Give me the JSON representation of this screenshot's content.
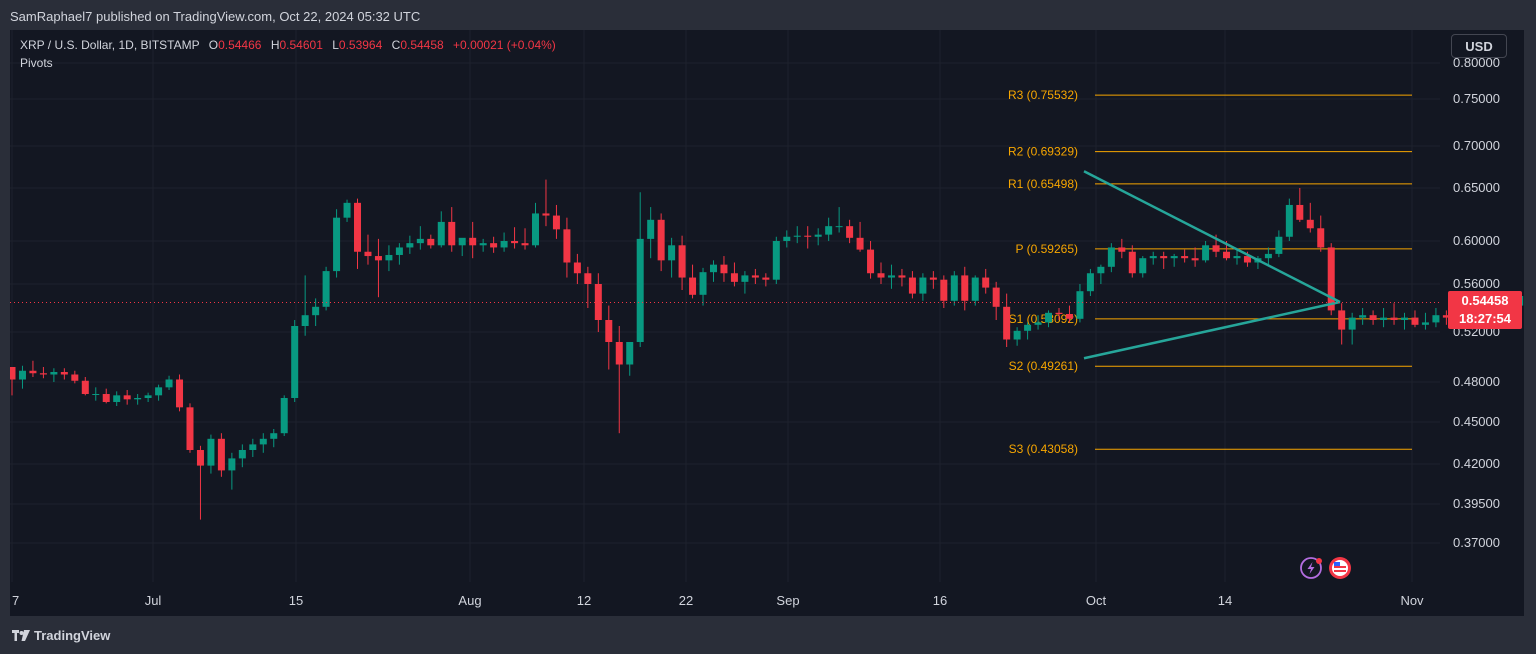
{
  "header": {
    "publisher": "SamRaphael7 published on TradingView.com, Oct 22, 2024 05:32 UTC"
  },
  "legend": {
    "symbol": "XRP / U.S. Dollar, 1D, BITSTAMP",
    "o_label": "O",
    "o": "0.54466",
    "h_label": "H",
    "h": "0.54601",
    "l_label": "L",
    "l": "0.53964",
    "c_label": "C",
    "c": "0.54458",
    "change": "+0.00021 (+0.04%)",
    "indicator": "Pivots"
  },
  "currency_button": "USD",
  "last_price": {
    "price": "0.54458",
    "countdown": "18:27:54"
  },
  "footer": {
    "brand": "TradingView"
  },
  "colors": {
    "up": "#089981",
    "down": "#f23645",
    "pivot": "#f7a600",
    "triangle": "#26a69a",
    "background": "#131722"
  },
  "chart_data": {
    "type": "candlestick",
    "title": "XRP / U.S. Dollar, 1D, BITSTAMP",
    "y_ticks": [
      "0.80000",
      "0.75000",
      "0.70000",
      "0.65000",
      "0.60000",
      "0.56000",
      "0.52000",
      "0.48000",
      "0.45000",
      "0.42000",
      "0.39500",
      "0.37000"
    ],
    "x_ticks": [
      "7",
      "Jul",
      "15",
      "Aug",
      "12",
      "22",
      "Sep",
      "16",
      "Oct",
      "14",
      "Nov"
    ],
    "pivots": [
      {
        "name": "R3",
        "label": "R3 (0.75532)",
        "value": 0.75532
      },
      {
        "name": "R2",
        "label": "R2 (0.69329)",
        "value": 0.69329
      },
      {
        "name": "R1",
        "label": "R1 (0.65498)",
        "value": 0.65498
      },
      {
        "name": "P",
        "label": "P (0.59265)",
        "value": 0.59265
      },
      {
        "name": "S1",
        "label": "S1 (0.53092)",
        "value": 0.53092
      },
      {
        "name": "S2",
        "label": "S2 (0.49261)",
        "value": 0.49261
      },
      {
        "name": "S3",
        "label": "S3 (0.43058)",
        "value": 0.43058
      }
    ],
    "triangle": {
      "upper": [
        [
          "Sep 28",
          0.67
        ],
        [
          "Oct 25",
          0.545
        ]
      ],
      "lower": [
        [
          "Sep 28",
          0.499
        ],
        [
          "Oct 25",
          0.545
        ]
      ]
    },
    "last_close": 0.54458,
    "candles_ohlc": [
      [
        0.492,
        0.492,
        0.47,
        0.482
      ],
      [
        0.482,
        0.493,
        0.475,
        0.489
      ],
      [
        0.489,
        0.497,
        0.484,
        0.487
      ],
      [
        0.487,
        0.492,
        0.483,
        0.486
      ],
      [
        0.486,
        0.491,
        0.48,
        0.488
      ],
      [
        0.488,
        0.491,
        0.482,
        0.486
      ],
      [
        0.486,
        0.489,
        0.479,
        0.481
      ],
      [
        0.481,
        0.484,
        0.47,
        0.471
      ],
      [
        0.471,
        0.476,
        0.466,
        0.471
      ],
      [
        0.471,
        0.475,
        0.464,
        0.465
      ],
      [
        0.465,
        0.473,
        0.462,
        0.47
      ],
      [
        0.47,
        0.474,
        0.463,
        0.467
      ],
      [
        0.467,
        0.471,
        0.463,
        0.468
      ],
      [
        0.468,
        0.472,
        0.465,
        0.47
      ],
      [
        0.47,
        0.478,
        0.466,
        0.476
      ],
      [
        0.476,
        0.485,
        0.474,
        0.482
      ],
      [
        0.482,
        0.486,
        0.458,
        0.461
      ],
      [
        0.461,
        0.464,
        0.428,
        0.43
      ],
      [
        0.43,
        0.433,
        0.385,
        0.419
      ],
      [
        0.419,
        0.441,
        0.414,
        0.438
      ],
      [
        0.438,
        0.442,
        0.412,
        0.416
      ],
      [
        0.416,
        0.428,
        0.404,
        0.424
      ],
      [
        0.424,
        0.434,
        0.418,
        0.43
      ],
      [
        0.43,
        0.438,
        0.425,
        0.434
      ],
      [
        0.434,
        0.442,
        0.428,
        0.438
      ],
      [
        0.438,
        0.445,
        0.432,
        0.442
      ],
      [
        0.442,
        0.47,
        0.44,
        0.468
      ],
      [
        0.468,
        0.53,
        0.465,
        0.525
      ],
      [
        0.525,
        0.568,
        0.517,
        0.534
      ],
      [
        0.534,
        0.548,
        0.525,
        0.541
      ],
      [
        0.541,
        0.576,
        0.538,
        0.572
      ],
      [
        0.572,
        0.63,
        0.566,
        0.622
      ],
      [
        0.622,
        0.639,
        0.618,
        0.636
      ],
      [
        0.636,
        0.64,
        0.574,
        0.59
      ],
      [
        0.59,
        0.606,
        0.578,
        0.586
      ],
      [
        0.586,
        0.602,
        0.549,
        0.582
      ],
      [
        0.582,
        0.596,
        0.572,
        0.587
      ],
      [
        0.587,
        0.598,
        0.578,
        0.594
      ],
      [
        0.594,
        0.605,
        0.588,
        0.598
      ],
      [
        0.598,
        0.614,
        0.592,
        0.602
      ],
      [
        0.602,
        0.606,
        0.593,
        0.596
      ],
      [
        0.596,
        0.628,
        0.594,
        0.618
      ],
      [
        0.618,
        0.632,
        0.59,
        0.596
      ],
      [
        0.596,
        0.602,
        0.586,
        0.603
      ],
      [
        0.603,
        0.618,
        0.584,
        0.596
      ],
      [
        0.596,
        0.602,
        0.59,
        0.598
      ],
      [
        0.598,
        0.604,
        0.589,
        0.594
      ],
      [
        0.594,
        0.608,
        0.59,
        0.6
      ],
      [
        0.6,
        0.613,
        0.593,
        0.598
      ],
      [
        0.598,
        0.612,
        0.592,
        0.596
      ],
      [
        0.596,
        0.636,
        0.594,
        0.626
      ],
      [
        0.626,
        0.66,
        0.614,
        0.624
      ],
      [
        0.624,
        0.634,
        0.602,
        0.611
      ],
      [
        0.611,
        0.622,
        0.566,
        0.58
      ],
      [
        0.58,
        0.588,
        0.56,
        0.57
      ],
      [
        0.57,
        0.576,
        0.54,
        0.56
      ],
      [
        0.56,
        0.57,
        0.52,
        0.53
      ],
      [
        0.53,
        0.542,
        0.49,
        0.512
      ],
      [
        0.512,
        0.525,
        0.442,
        0.494
      ],
      [
        0.494,
        0.512,
        0.485,
        0.512
      ],
      [
        0.512,
        0.646,
        0.508,
        0.602
      ],
      [
        0.602,
        0.632,
        0.584,
        0.62
      ],
      [
        0.62,
        0.626,
        0.572,
        0.582
      ],
      [
        0.582,
        0.603,
        0.566,
        0.596
      ],
      [
        0.596,
        0.605,
        0.555,
        0.566
      ],
      [
        0.566,
        0.578,
        0.548,
        0.551
      ],
      [
        0.551,
        0.575,
        0.542,
        0.571
      ],
      [
        0.571,
        0.582,
        0.562,
        0.578
      ],
      [
        0.578,
        0.586,
        0.562,
        0.57
      ],
      [
        0.57,
        0.58,
        0.558,
        0.562
      ],
      [
        0.562,
        0.572,
        0.552,
        0.568
      ],
      [
        0.568,
        0.574,
        0.56,
        0.566
      ],
      [
        0.566,
        0.57,
        0.558,
        0.564
      ],
      [
        0.564,
        0.604,
        0.56,
        0.6
      ],
      [
        0.6,
        0.61,
        0.594,
        0.604
      ],
      [
        0.604,
        0.614,
        0.598,
        0.605
      ],
      [
        0.605,
        0.614,
        0.593,
        0.604
      ],
      [
        0.604,
        0.612,
        0.596,
        0.606
      ],
      [
        0.606,
        0.622,
        0.6,
        0.614
      ],
      [
        0.614,
        0.632,
        0.608,
        0.614
      ],
      [
        0.614,
        0.62,
        0.598,
        0.603
      ],
      [
        0.603,
        0.618,
        0.59,
        0.592
      ],
      [
        0.592,
        0.6,
        0.565,
        0.57
      ],
      [
        0.57,
        0.58,
        0.56,
        0.566
      ],
      [
        0.566,
        0.578,
        0.556,
        0.568
      ],
      [
        0.568,
        0.574,
        0.558,
        0.566
      ],
      [
        0.566,
        0.572,
        0.548,
        0.552
      ],
      [
        0.552,
        0.57,
        0.546,
        0.566
      ],
      [
        0.566,
        0.572,
        0.556,
        0.564
      ],
      [
        0.564,
        0.568,
        0.54,
        0.546
      ],
      [
        0.546,
        0.572,
        0.542,
        0.568
      ],
      [
        0.568,
        0.576,
        0.538,
        0.546
      ],
      [
        0.546,
        0.568,
        0.542,
        0.566
      ],
      [
        0.566,
        0.574,
        0.552,
        0.557
      ],
      [
        0.557,
        0.562,
        0.53,
        0.541
      ],
      [
        0.541,
        0.552,
        0.508,
        0.514
      ],
      [
        0.514,
        0.524,
        0.509,
        0.521
      ],
      [
        0.521,
        0.528,
        0.514,
        0.526
      ],
      [
        0.526,
        0.534,
        0.522,
        0.528
      ],
      [
        0.528,
        0.538,
        0.524,
        0.536
      ],
      [
        0.536,
        0.54,
        0.53,
        0.535
      ],
      [
        0.535,
        0.542,
        0.528,
        0.531
      ],
      [
        0.531,
        0.56,
        0.528,
        0.554
      ],
      [
        0.554,
        0.574,
        0.55,
        0.57
      ],
      [
        0.57,
        0.578,
        0.56,
        0.576
      ],
      [
        0.576,
        0.598,
        0.571,
        0.594
      ],
      [
        0.594,
        0.602,
        0.584,
        0.59
      ],
      [
        0.59,
        0.596,
        0.566,
        0.57
      ],
      [
        0.57,
        0.586,
        0.566,
        0.584
      ],
      [
        0.584,
        0.59,
        0.578,
        0.586
      ],
      [
        0.586,
        0.59,
        0.574,
        0.584
      ],
      [
        0.584,
        0.588,
        0.576,
        0.586
      ],
      [
        0.586,
        0.592,
        0.58,
        0.584
      ],
      [
        0.584,
        0.594,
        0.576,
        0.582
      ],
      [
        0.582,
        0.6,
        0.58,
        0.596
      ],
      [
        0.596,
        0.606,
        0.585,
        0.59
      ],
      [
        0.59,
        0.6,
        0.582,
        0.584
      ],
      [
        0.584,
        0.592,
        0.578,
        0.586
      ],
      [
        0.586,
        0.59,
        0.576,
        0.58
      ],
      [
        0.58,
        0.586,
        0.574,
        0.584
      ],
      [
        0.584,
        0.594,
        0.578,
        0.588
      ],
      [
        0.588,
        0.61,
        0.585,
        0.604
      ],
      [
        0.604,
        0.64,
        0.6,
        0.634
      ],
      [
        0.634,
        0.65,
        0.618,
        0.62
      ],
      [
        0.62,
        0.636,
        0.608,
        0.612
      ],
      [
        0.612,
        0.624,
        0.59,
        0.594
      ],
      [
        0.594,
        0.598,
        0.534,
        0.538
      ],
      [
        0.538,
        0.544,
        0.51,
        0.522
      ],
      [
        0.522,
        0.536,
        0.51,
        0.532
      ],
      [
        0.532,
        0.54,
        0.526,
        0.534
      ],
      [
        0.534,
        0.538,
        0.526,
        0.53
      ],
      [
        0.53,
        0.54,
        0.524,
        0.532
      ],
      [
        0.532,
        0.544,
        0.526,
        0.53
      ],
      [
        0.53,
        0.536,
        0.522,
        0.532
      ],
      [
        0.532,
        0.538,
        0.524,
        0.526
      ],
      [
        0.526,
        0.536,
        0.522,
        0.528
      ],
      [
        0.528,
        0.54,
        0.524,
        0.534
      ],
      [
        0.534,
        0.538,
        0.526,
        0.532
      ],
      [
        0.532,
        0.544,
        0.528,
        0.54
      ],
      [
        0.54,
        0.544,
        0.532,
        0.538
      ],
      [
        0.538,
        0.546,
        0.53,
        0.536
      ],
      [
        0.536,
        0.544,
        0.53,
        0.54
      ],
      [
        0.54,
        0.552,
        0.536,
        0.548
      ],
      [
        0.548,
        0.554,
        0.538,
        0.542
      ],
      [
        0.542,
        0.554,
        0.538,
        0.55
      ],
      [
        0.55,
        0.562,
        0.54,
        0.544
      ],
      [
        0.544,
        0.552,
        0.54,
        0.548
      ],
      [
        0.548,
        0.554,
        0.538,
        0.546
      ],
      [
        0.546,
        0.552,
        0.54,
        0.548
      ],
      [
        0.548,
        0.558,
        0.542,
        0.544
      ],
      [
        0.544,
        0.548,
        0.539,
        0.545
      ]
    ]
  }
}
